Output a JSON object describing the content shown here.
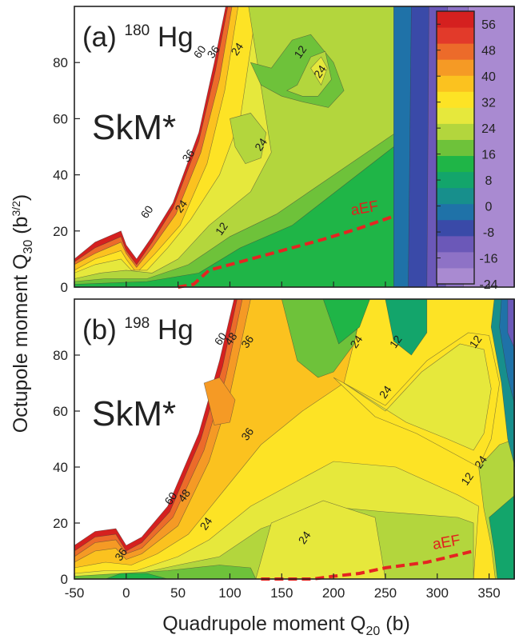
{
  "chart_data": {
    "type": "heatmap",
    "colorbar": {
      "ticks": [
        "56",
        "48",
        "40",
        "32",
        "24",
        "16",
        "8",
        "0",
        "-8",
        "-16",
        "-24"
      ],
      "values": [
        56,
        48,
        40,
        32,
        24,
        16,
        8,
        0,
        -8,
        -16,
        -24
      ],
      "range": [
        -24,
        60
      ],
      "colors": [
        "#a98ad1",
        "#8e72c6",
        "#6b58b8",
        "#3a4aa8",
        "#1f72a8",
        "#178f8c",
        "#13a56b",
        "#1fb547",
        "#6ec23a",
        "#b3d63d",
        "#e6e83c",
        "#fde325",
        "#fbc21f",
        "#f59a25",
        "#ec6b2a",
        "#e23a2a",
        "#d5201f"
      ]
    },
    "xaxis": {
      "label": "Quadrupole moment Q",
      "label_sub": "20",
      "label_suffix": " (b)",
      "range": [
        -50,
        375
      ],
      "ticks": [
        -50,
        0,
        50,
        100,
        150,
        200,
        250,
        300,
        350
      ],
      "tick_labels": [
        "-50",
        "0",
        "50",
        "100",
        "150",
        "200",
        "250",
        "300",
        "350"
      ]
    },
    "yaxis": {
      "label_prefix": "Octupole moment  Q",
      "label_sub": "30",
      "label_suffix_open": " (b",
      "label_sup": "3/2",
      "label_suffix_close": ")",
      "range": [
        0,
        100
      ],
      "ticks": [
        0,
        20,
        40,
        60,
        80
      ],
      "tick_labels": [
        "0",
        "20",
        "40",
        "60",
        "80"
      ]
    },
    "panels": [
      {
        "label": "(a)",
        "mass": "180",
        "element": "Hg",
        "model": "SkM*",
        "path_label": "aEF",
        "aef_path": [
          [
            50,
            0
          ],
          [
            65,
            1
          ],
          [
            80,
            6
          ],
          [
            110,
            9
          ],
          [
            150,
            13
          ],
          [
            190,
            17
          ],
          [
            225,
            21
          ],
          [
            256,
            25
          ]
        ],
        "contour_labels": [
          {
            "text": "60",
            "x": 74,
            "y": 83
          },
          {
            "text": "36",
            "x": 87,
            "y": 83
          },
          {
            "text": "24",
            "x": 110,
            "y": 84
          },
          {
            "text": "12",
            "x": 171,
            "y": 83
          },
          {
            "text": "24",
            "x": 190,
            "y": 76
          },
          {
            "text": "24",
            "x": 133,
            "y": 50
          },
          {
            "text": "36",
            "x": 63,
            "y": 46
          },
          {
            "text": "24",
            "x": 56,
            "y": 28
          },
          {
            "text": "60",
            "x": 23,
            "y": 26
          },
          {
            "text": "12",
            "x": 95,
            "y": 20
          }
        ]
      },
      {
        "label": "(b)",
        "mass": "198",
        "element": "Hg",
        "model": "SkM*",
        "path_label": "aEF",
        "aef_path": [
          [
            130,
            0
          ],
          [
            180,
            0
          ],
          [
            200,
            1
          ],
          [
            225,
            2
          ],
          [
            250,
            4
          ],
          [
            290,
            6
          ],
          [
            335,
            10
          ]
        ],
        "contour_labels": [
          {
            "text": "60",
            "x": 94,
            "y": 85
          },
          {
            "text": "48",
            "x": 104,
            "y": 85
          },
          {
            "text": "36",
            "x": 120,
            "y": 84
          },
          {
            "text": "24",
            "x": 225,
            "y": 84
          },
          {
            "text": "12",
            "x": 263,
            "y": 84
          },
          {
            "text": "12",
            "x": 340,
            "y": 84
          },
          {
            "text": "24",
            "x": 253,
            "y": 66
          },
          {
            "text": "36",
            "x": 120,
            "y": 51
          },
          {
            "text": "60",
            "x": 46,
            "y": 28
          },
          {
            "text": "48",
            "x": 59,
            "y": 29
          },
          {
            "text": "24",
            "x": 80,
            "y": 19
          },
          {
            "text": "24",
            "x": 175,
            "y": 14
          },
          {
            "text": "24",
            "x": 345,
            "y": 41
          },
          {
            "text": "12",
            "x": 332,
            "y": 35
          },
          {
            "text": "36",
            "x": -2,
            "y": 8
          }
        ]
      }
    ]
  }
}
